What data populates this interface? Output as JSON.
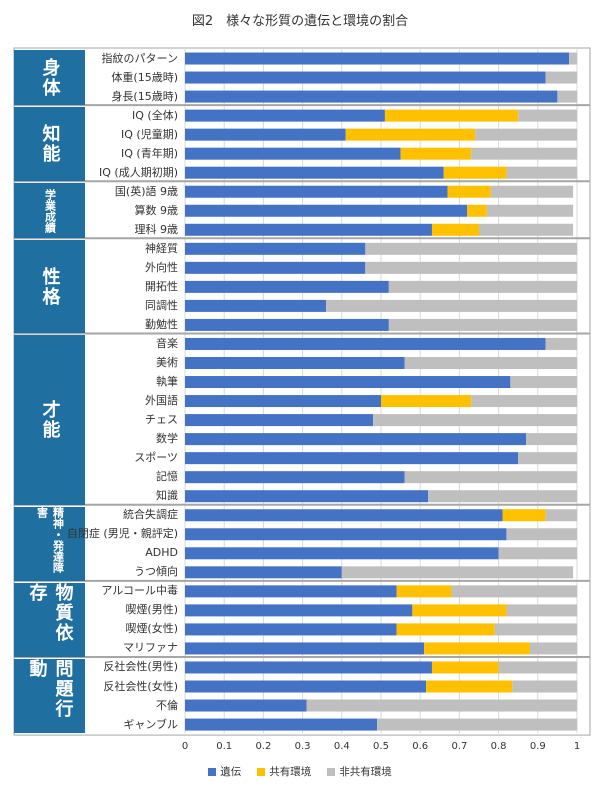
{
  "chart_data": {
    "type": "bar",
    "orientation": "horizontal",
    "stacked": true,
    "title": "図2　様々な形質の遺伝と環境の割合",
    "xlim": [
      0,
      1
    ],
    "xticks": [
      "0",
      "0.1",
      "0.2",
      "0.3",
      "0.4",
      "0.5",
      "0.6",
      "0.7",
      "0.8",
      "0.9",
      "1"
    ],
    "grid": true,
    "legend_position": "bottom",
    "series": [
      {
        "name": "遺伝",
        "color": "#4472c4"
      },
      {
        "name": "共有環境",
        "color": "#ffc000"
      },
      {
        "name": "非共有環境",
        "color": "#bfbfbf"
      }
    ],
    "groups": [
      {
        "label": "身体",
        "items": [
          {
            "label": "指紋のパターン",
            "values": [
              0.98,
              0,
              0.02
            ]
          },
          {
            "label": "体重(15歳時)",
            "values": [
              0.92,
              0,
              0.08
            ]
          },
          {
            "label": "身長(15歳時)",
            "values": [
              0.95,
              0,
              0.05
            ]
          }
        ]
      },
      {
        "label": "知能",
        "items": [
          {
            "label": "IQ (全体)",
            "values": [
              0.51,
              0.34,
              0.15
            ]
          },
          {
            "label": "IQ (児童期)",
            "values": [
              0.41,
              0.33,
              0.26
            ]
          },
          {
            "label": "IQ (青年期)",
            "values": [
              0.55,
              0.18,
              0.27
            ]
          },
          {
            "label": "IQ (成人期初期)",
            "values": [
              0.66,
              0.16,
              0.18
            ]
          }
        ]
      },
      {
        "label": "学業成績",
        "small": true,
        "items": [
          {
            "label": "国(英)語 9歳",
            "values": [
              0.67,
              0.11,
              0.21
            ]
          },
          {
            "label": "算数 9歳",
            "values": [
              0.72,
              0.05,
              0.22
            ]
          },
          {
            "label": "理科 9歳",
            "values": [
              0.63,
              0.12,
              0.24
            ]
          }
        ]
      },
      {
        "label": "性格",
        "items": [
          {
            "label": "神経質",
            "values": [
              0.46,
              0,
              0.54
            ]
          },
          {
            "label": "外向性",
            "values": [
              0.46,
              0,
              0.54
            ]
          },
          {
            "label": "開拓性",
            "values": [
              0.52,
              0,
              0.48
            ]
          },
          {
            "label": "同調性",
            "values": [
              0.36,
              0,
              0.64
            ]
          },
          {
            "label": "勤勉性",
            "values": [
              0.52,
              0,
              0.48
            ]
          }
        ]
      },
      {
        "label": "才能",
        "items": [
          {
            "label": "音楽",
            "values": [
              0.92,
              0,
              0.08
            ]
          },
          {
            "label": "美術",
            "values": [
              0.56,
              0,
              0.44
            ]
          },
          {
            "label": "執筆",
            "values": [
              0.83,
              0,
              0.17
            ]
          },
          {
            "label": "外国語",
            "values": [
              0.5,
              0.23,
              0.27
            ]
          },
          {
            "label": "チェス",
            "values": [
              0.48,
              0,
              0.52
            ]
          },
          {
            "label": "数学",
            "values": [
              0.87,
              0,
              0.13
            ]
          },
          {
            "label": "スポーツ",
            "values": [
              0.85,
              0,
              0.15
            ]
          },
          {
            "label": "記憶",
            "values": [
              0.56,
              0,
              0.44
            ]
          },
          {
            "label": "知識",
            "values": [
              0.62,
              0,
              0.38
            ]
          }
        ]
      },
      {
        "label": "精神・発達障害",
        "small": true,
        "items": [
          {
            "label": "統合失調症",
            "values": [
              0.81,
              0.11,
              0.08
            ]
          },
          {
            "label": "自閉症 (男児・親評定)",
            "values": [
              0.82,
              0,
              0.18
            ]
          },
          {
            "label": "ADHD",
            "values": [
              0.8,
              0,
              0.2
            ]
          },
          {
            "label": "うつ傾向",
            "values": [
              0.4,
              0,
              0.59
            ]
          }
        ]
      },
      {
        "label": "物質依存",
        "items": [
          {
            "label": "アルコール中毒",
            "values": [
              0.54,
              0.14,
              0.32
            ]
          },
          {
            "label": "喫煙(男性)",
            "values": [
              0.58,
              0.24,
              0.18
            ]
          },
          {
            "label": "喫煙(女性)",
            "values": [
              0.54,
              0.25,
              0.21
            ]
          },
          {
            "label": "マリファナ",
            "values": [
              0.61,
              0.27,
              0.12
            ]
          }
        ]
      },
      {
        "label": "問題行動",
        "items": [
          {
            "label": "反社会性(男性)",
            "values": [
              0.63,
              0.17,
              0.2
            ]
          },
          {
            "label": "反社会性(女性)",
            "values": [
              0.615,
              0.22,
              0.165
            ]
          },
          {
            "label": "不倫",
            "values": [
              0.31,
              0,
              0.69
            ]
          },
          {
            "label": "ギャンブル",
            "values": [
              0.49,
              0,
              0.51
            ]
          }
        ]
      }
    ],
    "colors": {
      "group_box": "#1f6fa0"
    }
  }
}
